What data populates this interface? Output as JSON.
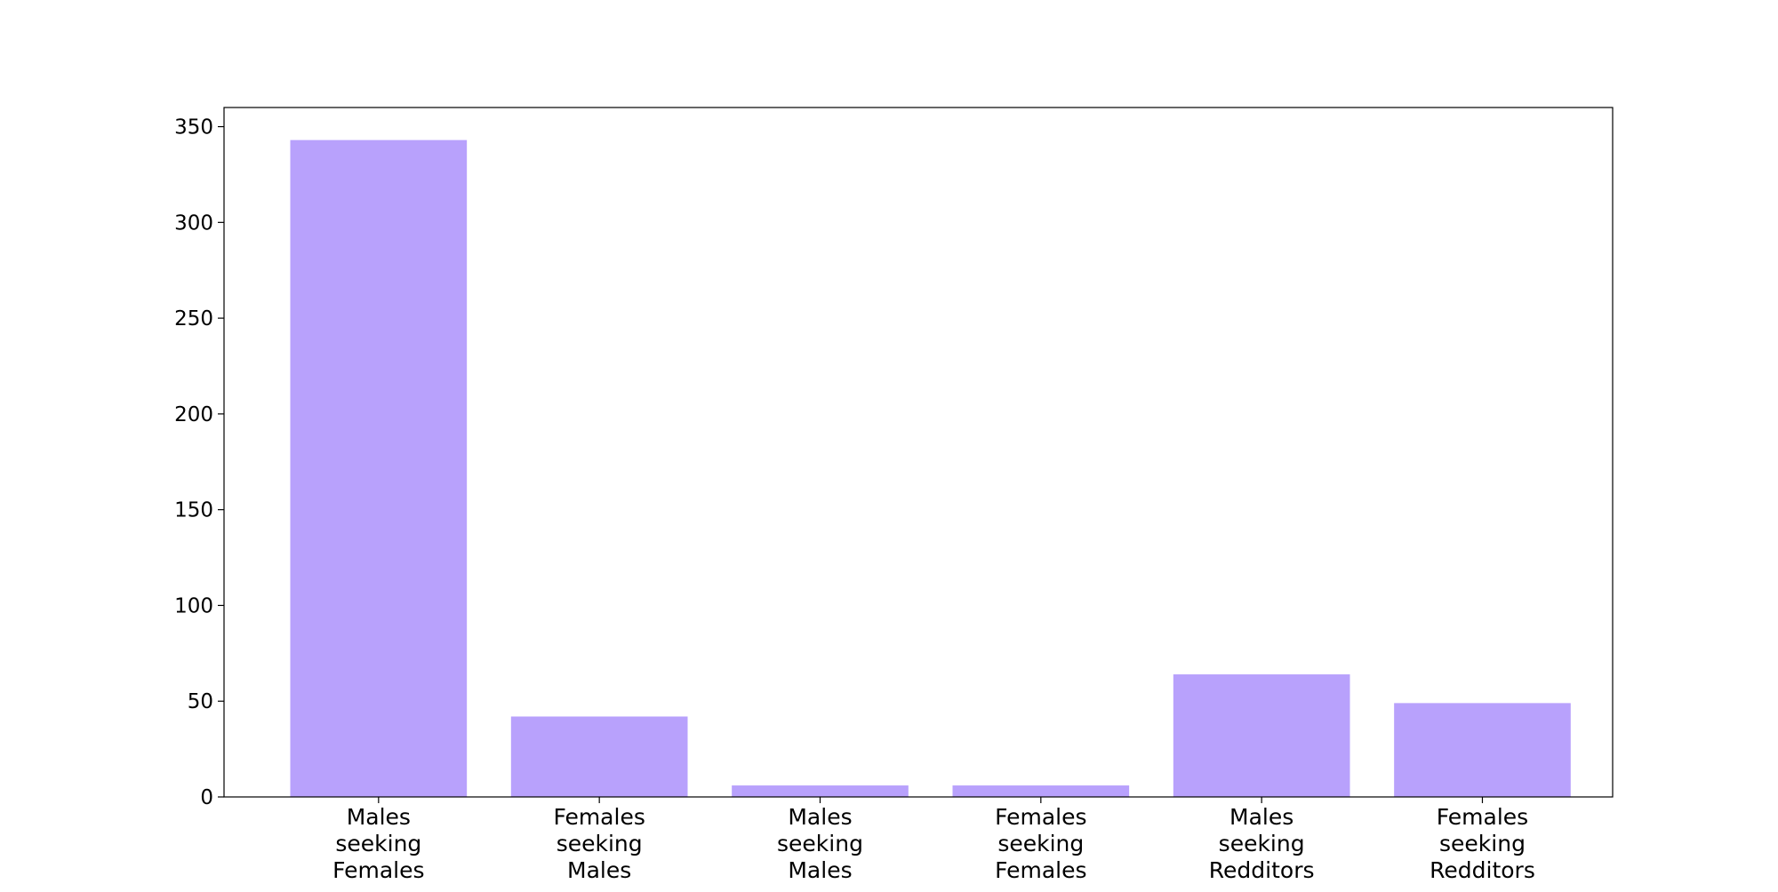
{
  "chart_data": {
    "type": "bar",
    "categories": [
      [
        "Males",
        "seeking",
        "Females"
      ],
      [
        "Females",
        "seeking",
        "Males"
      ],
      [
        "Males",
        "seeking",
        "Males"
      ],
      [
        "Females",
        "seeking",
        "Females"
      ],
      [
        "Males",
        "seeking",
        "Redditors"
      ],
      [
        "Females",
        "seeking",
        "Redditors"
      ]
    ],
    "values": [
      343,
      42,
      6,
      6,
      64,
      49
    ],
    "ylim": [
      0,
      360
    ],
    "yticks": [
      0,
      50,
      100,
      150,
      200,
      250,
      300,
      350
    ],
    "title": "",
    "xlabel": "",
    "ylabel": "",
    "grid": false,
    "bar_color": "#b8a1fc"
  }
}
